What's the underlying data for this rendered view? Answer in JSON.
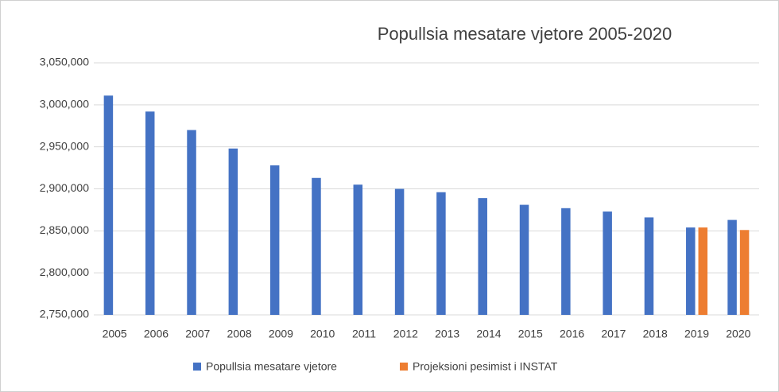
{
  "chart_data": {
    "type": "bar",
    "title": "Popullsia mesatare vjetore 2005-2020",
    "categories": [
      "2005",
      "2006",
      "2007",
      "2008",
      "2009",
      "2010",
      "2011",
      "2012",
      "2013",
      "2014",
      "2015",
      "2016",
      "2017",
      "2018",
      "2019",
      "2020"
    ],
    "series": [
      {
        "name": "Popullsia mesatare vjetore",
        "color": "#4472c4",
        "values": [
          3011000,
          2992000,
          2970000,
          2948000,
          2928000,
          2913000,
          2905000,
          2900000,
          2896000,
          2889000,
          2881000,
          2877000,
          2873000,
          2866000,
          2854000,
          2863000
        ]
      },
      {
        "name": "Projeksioni pesimist i INSTAT",
        "color": "#ed7d31",
        "values": [
          null,
          null,
          null,
          null,
          null,
          null,
          null,
          null,
          null,
          null,
          null,
          null,
          null,
          null,
          2854000,
          2851000
        ]
      }
    ],
    "ylim": [
      2750000,
      3050000
    ],
    "yticks": [
      {
        "value": 2750000,
        "label": "2,750,000"
      },
      {
        "value": 2800000,
        "label": "2,800,000"
      },
      {
        "value": 2850000,
        "label": "2,850,000"
      },
      {
        "value": 2900000,
        "label": "2,900,000"
      },
      {
        "value": 2950000,
        "label": "2,950,000"
      },
      {
        "value": 3000000,
        "label": "3,000,000"
      },
      {
        "value": 3050000,
        "label": "3,050,000"
      }
    ],
    "grid": true,
    "legend": "bottom"
  }
}
